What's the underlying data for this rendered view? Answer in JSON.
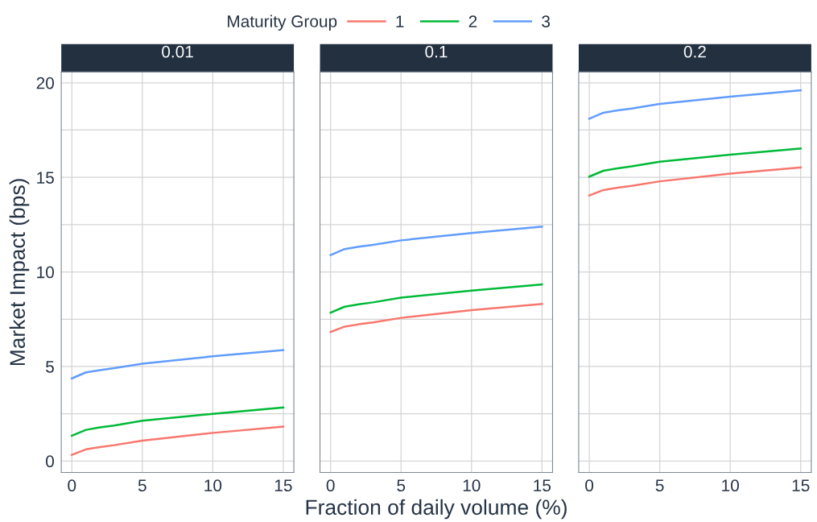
{
  "chart_data": [
    {
      "type": "line",
      "title": "0.01",
      "ylabel": "Market Impact (bps)",
      "legend_title": "Maturity Group",
      "legend": "top",
      "grid": true,
      "x": [
        0,
        1,
        2,
        3,
        5,
        10,
        15
      ],
      "series": [
        {
          "name": "1",
          "color": "#f8766d",
          "values": [
            0.33,
            0.62,
            0.74,
            0.84,
            1.08,
            1.49,
            1.82
          ]
        },
        {
          "name": "2",
          "color": "#00ba38",
          "values": [
            1.34,
            1.65,
            1.78,
            1.88,
            2.13,
            2.5,
            2.83
          ]
        },
        {
          "name": "3",
          "color": "#619cff",
          "values": [
            4.37,
            4.69,
            4.81,
            4.91,
            5.15,
            5.54,
            5.87
          ]
        }
      ],
      "xlim": [
        -0.75,
        15.75
      ],
      "xticks": [
        0,
        5,
        10,
        15
      ],
      "ylim": [
        -0.6,
        20.57
      ],
      "yticks": [
        0,
        {
          "value": 2.5,
          "label": null
        },
        5,
        {
          "value": 7.5,
          "label": null
        },
        10,
        {
          "value": 12.5,
          "label": null
        },
        15,
        {
          "value": 17.5,
          "label": null
        },
        20
      ]
    },
    {
      "type": "line",
      "title": "0.1",
      "xlabel": "Fraction of daily volume (%)",
      "grid": true,
      "tick_labels": "x",
      "x": [
        0,
        1,
        2,
        3,
        5,
        10,
        15
      ],
      "series": [
        {
          "name": "1",
          "color": "#f8766d",
          "values": [
            6.82,
            7.11,
            7.23,
            7.33,
            7.57,
            7.98,
            8.31
          ]
        },
        {
          "name": "2",
          "color": "#00ba38",
          "values": [
            7.85,
            8.16,
            8.29,
            8.39,
            8.64,
            9.01,
            9.34
          ]
        },
        {
          "name": "3",
          "color": "#619cff",
          "values": [
            10.89,
            11.21,
            11.33,
            11.43,
            11.67,
            12.06,
            12.39
          ]
        }
      ],
      "xlim": [
        -0.75,
        15.75
      ],
      "xticks": [
        0,
        5,
        10,
        15
      ],
      "ylim": [
        -0.6,
        20.57
      ],
      "yticks": [
        0,
        {
          "value": 2.5,
          "label": null
        },
        5,
        {
          "value": 7.5,
          "label": null
        },
        10,
        {
          "value": 12.5,
          "label": null
        },
        15,
        {
          "value": 17.5,
          "label": null
        },
        20
      ]
    },
    {
      "type": "line",
      "title": "0.2",
      "grid": true,
      "tick_labels": "x",
      "x": [
        0,
        1,
        2,
        3,
        5,
        10,
        15
      ],
      "series": [
        {
          "name": "1",
          "color": "#f8766d",
          "values": [
            14.04,
            14.33,
            14.45,
            14.55,
            14.79,
            15.2,
            15.53
          ]
        },
        {
          "name": "2",
          "color": "#00ba38",
          "values": [
            15.04,
            15.35,
            15.48,
            15.58,
            15.83,
            16.2,
            16.53
          ]
        },
        {
          "name": "3",
          "color": "#619cff",
          "values": [
            18.1,
            18.42,
            18.54,
            18.64,
            18.88,
            19.27,
            19.6
          ]
        }
      ],
      "xlim": [
        -0.75,
        15.75
      ],
      "xticks": [
        0,
        5,
        10,
        15
      ],
      "ylim": [
        -0.6,
        20.57
      ],
      "yticks": [
        0,
        {
          "value": 2.5,
          "label": null
        },
        5,
        {
          "value": 7.5,
          "label": null
        },
        10,
        {
          "value": 12.5,
          "label": null
        },
        15,
        {
          "value": 17.5,
          "label": null
        },
        20
      ]
    }
  ]
}
